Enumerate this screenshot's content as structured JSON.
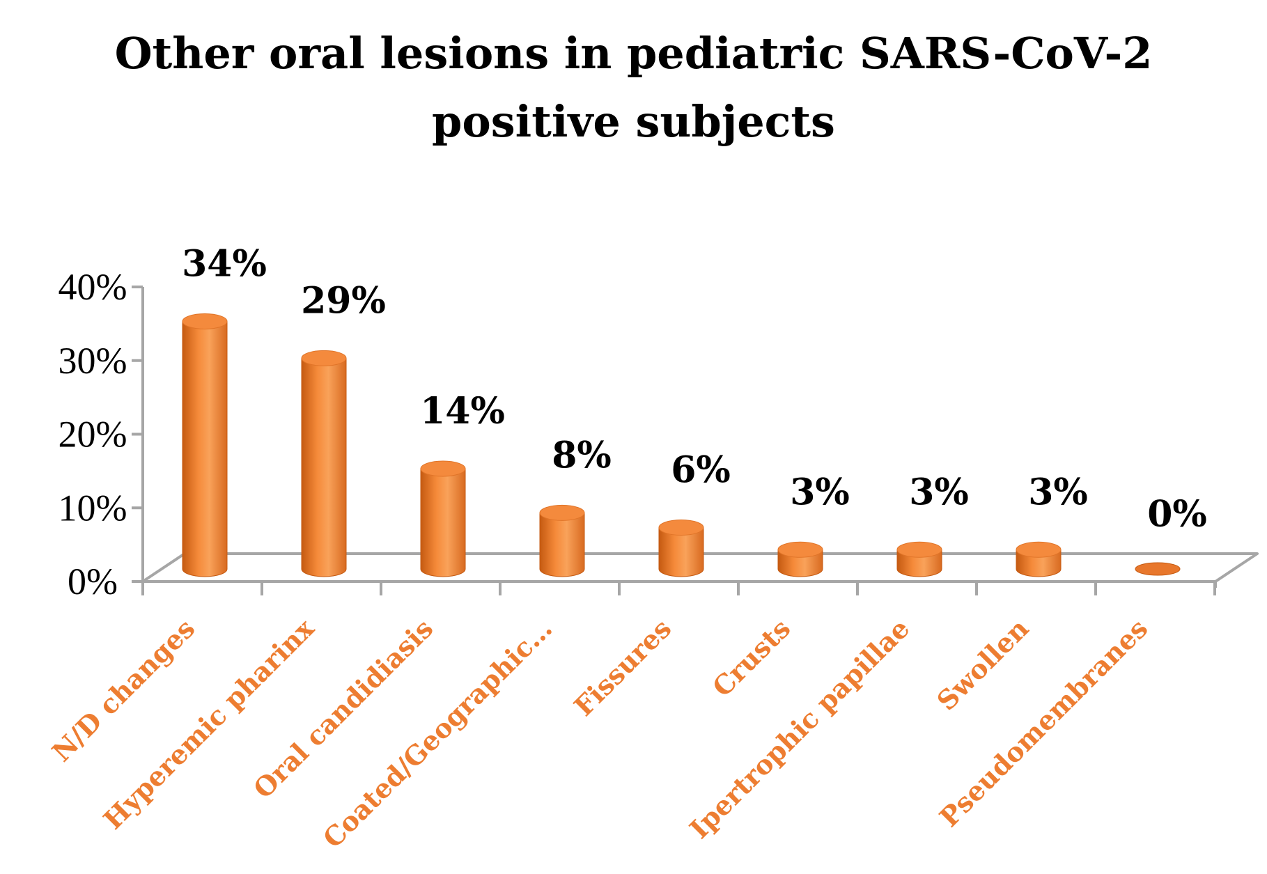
{
  "chart_data": {
    "type": "bar",
    "title_lines": [
      "Other oral lesions in pediatric SARS-CoV-2",
      "positive subjects"
    ],
    "categories": [
      "N/D changes",
      "Hyperemic pharinx",
      "Oral candidiasis",
      "Coated/Geographic…",
      "Fissures",
      "Crusts",
      "Ipertrophic papillae",
      "Swollen",
      "Pseudomembranes"
    ],
    "values": [
      34,
      29,
      14,
      8,
      6,
      3,
      3,
      3,
      0
    ],
    "data_labels": [
      "34%",
      "29%",
      "14%",
      "8%",
      "6%",
      "3%",
      "3%",
      "3%",
      "0%"
    ],
    "y_ticks": [
      "0%",
      "10%",
      "20%",
      "30%",
      "40%"
    ],
    "ylim": [
      0,
      40
    ],
    "xlabel": "",
    "ylabel": "",
    "bar_shape": "cylinder",
    "colors": {
      "bar": "#ED7D31",
      "bar_light": "#F9A25A",
      "bar_dark": "#C55A11",
      "axis": "#A6A6A6",
      "category_text": "#ED7D31"
    }
  }
}
